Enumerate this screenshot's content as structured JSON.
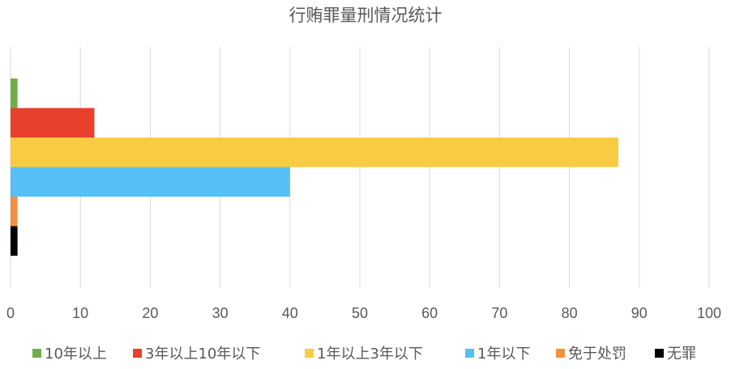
{
  "chart_data": {
    "type": "bar",
    "orientation": "horizontal",
    "title": "行贿罪量刑情况统计",
    "xlabel": "",
    "ylabel": "",
    "xlim": [
      0,
      100
    ],
    "xticks": [
      0,
      10,
      20,
      30,
      40,
      50,
      60,
      70,
      80,
      90,
      100
    ],
    "grid": true,
    "legend_position": "bottom",
    "series": [
      {
        "name": "10年以上",
        "values": [
          1
        ],
        "color": "#70ad47"
      },
      {
        "name": "3年以上10年以下",
        "values": [
          12
        ],
        "color": "#e8402b"
      },
      {
        "name": "1年以上3年以下",
        "values": [
          87
        ],
        "color": "#f8cb42"
      },
      {
        "name": "1年以下",
        "values": [
          40
        ],
        "color": "#55c0f5"
      },
      {
        "name": "免于处罚",
        "values": [
          1
        ],
        "color": "#f4913f"
      },
      {
        "name": "无罪",
        "values": [
          1
        ],
        "color": "#000000"
      }
    ]
  }
}
